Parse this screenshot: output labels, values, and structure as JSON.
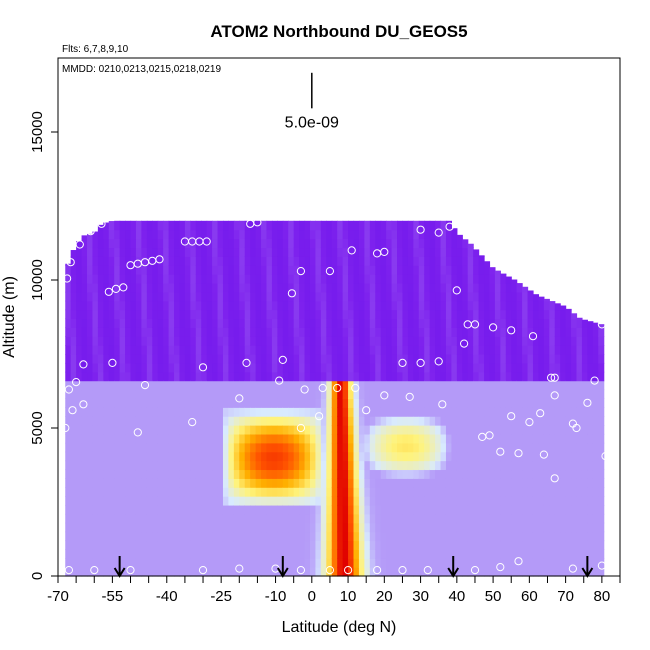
{
  "chart_data": {
    "type": "heatmap",
    "title": "ATOM2 Northbound DU_GEOS5",
    "flights_note": "Flts: 6,7,8,9,10",
    "dates_note": "MMDD: 0210,0213,0215,0218,0219",
    "xlabel": "Latitude (deg N)",
    "ylabel": "Altitude (m)",
    "xlim": [
      -70,
      85
    ],
    "ylim": [
      0,
      17500
    ],
    "x_ticks": [
      -70,
      -55,
      -40,
      -25,
      -10,
      0,
      10,
      20,
      30,
      40,
      50,
      60,
      70,
      80
    ],
    "x_tick_labels": [
      "-70",
      "-55",
      "-40",
      "-25",
      "-10",
      "0",
      "10",
      "20",
      "30",
      "40",
      "50",
      "60",
      "70",
      "80"
    ],
    "x_minor_ticks": [
      -65,
      -60,
      -50,
      -45,
      -35,
      -30,
      -20,
      -15,
      -5,
      5,
      15,
      25,
      35,
      45,
      55,
      65,
      75,
      85
    ],
    "y_ticks": [
      0,
      5000,
      10000,
      15000
    ],
    "y_tick_labels": [
      "0",
      "5000",
      "10000",
      "15000"
    ],
    "scale_bar_label": "5.0e-09",
    "scale_bar_x": 0,
    "scale_bar_y_range": [
      15800,
      17000
    ],
    "colormap": [
      "#00007a",
      "#2a18e6",
      "#6a12ea",
      "#7e22ee",
      "#d8eaff",
      "#fff37a",
      "#ffb000",
      "#ff5000",
      "#e00000"
    ],
    "curtain_top": [
      {
        "lat": -68,
        "top": 10100
      },
      {
        "lat": -67,
        "top": 10700
      },
      {
        "lat": -65,
        "top": 11200
      },
      {
        "lat": -63,
        "top": 11500
      },
      {
        "lat": -60,
        "top": 11600
      },
      {
        "lat": -58,
        "top": 11900
      },
      {
        "lat": -55,
        "top": 12000
      },
      {
        "lat": 38,
        "top": 12000
      },
      {
        "lat": 40,
        "top": 11600
      },
      {
        "lat": 44,
        "top": 11200
      },
      {
        "lat": 50,
        "top": 10400
      },
      {
        "lat": 56,
        "top": 10000
      },
      {
        "lat": 62,
        "top": 9500
      },
      {
        "lat": 70,
        "top": 9100
      },
      {
        "lat": 74,
        "top": 8700
      },
      {
        "lat": 80,
        "top": 8500
      },
      {
        "lat": 81,
        "top": 8000
      }
    ],
    "plumes": [
      {
        "name": "dust-core",
        "lat_base": 9,
        "lat_top": 8,
        "alt_top": 6600,
        "half_width_base": 4.5,
        "half_width_top": 2.5,
        "peak": 1.0
      },
      {
        "name": "dust-layer-left",
        "lat": -3,
        "alt_bottom": 2400,
        "alt_top": 5600,
        "lat_left": -24,
        "lat_right": 3,
        "peak": 0.85
      },
      {
        "name": "dust-layer-right",
        "lat": 17,
        "alt_bottom": 3200,
        "alt_top": 5600,
        "lat_left": 12,
        "lat_right": 40,
        "peak": 0.55
      }
    ],
    "flight_points": [
      [
        -67.5,
        10050
      ],
      [
        -66.5,
        10600
      ],
      [
        -64,
        11200
      ],
      [
        -61,
        11650
      ],
      [
        -58,
        11900
      ],
      [
        -50,
        10500
      ],
      [
        -48,
        10550
      ],
      [
        -46,
        10600
      ],
      [
        -44,
        10650
      ],
      [
        -42,
        10700
      ],
      [
        -35,
        11300
      ],
      [
        -33,
        11300
      ],
      [
        -31,
        11300
      ],
      [
        -29,
        11300
      ],
      [
        -17,
        11900
      ],
      [
        -15,
        11950
      ],
      [
        -3,
        10300
      ],
      [
        -5.5,
        9550
      ],
      [
        5,
        10300
      ],
      [
        11,
        11000
      ],
      [
        18,
        10900
      ],
      [
        20,
        10950
      ],
      [
        30,
        11700
      ],
      [
        35,
        11600
      ],
      [
        38,
        11800
      ],
      [
        -56,
        9600
      ],
      [
        -54,
        9700
      ],
      [
        -52,
        9750
      ],
      [
        40,
        9650
      ],
      [
        42,
        7850
      ],
      [
        43,
        8500
      ],
      [
        45,
        8500
      ],
      [
        50,
        8400
      ],
      [
        55,
        8300
      ],
      [
        61,
        8100
      ],
      [
        69,
        9350
      ],
      [
        73,
        9350
      ],
      [
        80,
        8500
      ],
      [
        -67,
        6300
      ],
      [
        -65,
        6550
      ],
      [
        -63,
        7150
      ],
      [
        -55,
        7200
      ],
      [
        -46,
        6450
      ],
      [
        -30,
        7050
      ],
      [
        -18,
        7200
      ],
      [
        -8,
        7300
      ],
      [
        -9,
        6600
      ],
      [
        -2,
        6300
      ],
      [
        3,
        6350
      ],
      [
        7,
        6350
      ],
      [
        12,
        6350
      ],
      [
        20,
        6100
      ],
      [
        25,
        7200
      ],
      [
        30,
        7200
      ],
      [
        35,
        7250
      ],
      [
        -68,
        5000
      ],
      [
        -66,
        5600
      ],
      [
        -63,
        5800
      ],
      [
        -48,
        4850
      ],
      [
        -33,
        5200
      ],
      [
        -20,
        6000
      ],
      [
        -3,
        5000
      ],
      [
        2,
        5400
      ],
      [
        15,
        5600
      ],
      [
        27,
        6050
      ],
      [
        36,
        5800
      ],
      [
        47,
        4700
      ],
      [
        49,
        4750
      ],
      [
        52,
        4200
      ],
      [
        55,
        5400
      ],
      [
        57,
        4150
      ],
      [
        60,
        5200
      ],
      [
        63,
        5500
      ],
      [
        64,
        4100
      ],
      [
        66,
        6700
      ],
      [
        67,
        6700
      ],
      [
        67,
        6100
      ],
      [
        67,
        3300
      ],
      [
        72,
        5150
      ],
      [
        73,
        5000
      ],
      [
        76,
        5850
      ],
      [
        78,
        6600
      ],
      [
        81,
        4050
      ],
      [
        -67,
        200
      ],
      [
        -60,
        200
      ],
      [
        -50,
        200
      ],
      [
        -30,
        200
      ],
      [
        -20,
        250
      ],
      [
        -10,
        250
      ],
      [
        -3,
        200
      ],
      [
        5,
        200
      ],
      [
        10,
        200
      ],
      [
        18,
        200
      ],
      [
        25,
        200
      ],
      [
        32,
        200
      ],
      [
        45,
        200
      ],
      [
        52,
        300
      ],
      [
        57,
        500
      ],
      [
        72,
        250
      ],
      [
        80,
        350
      ]
    ],
    "arrows": [
      -53,
      -8,
      39,
      76
    ]
  }
}
